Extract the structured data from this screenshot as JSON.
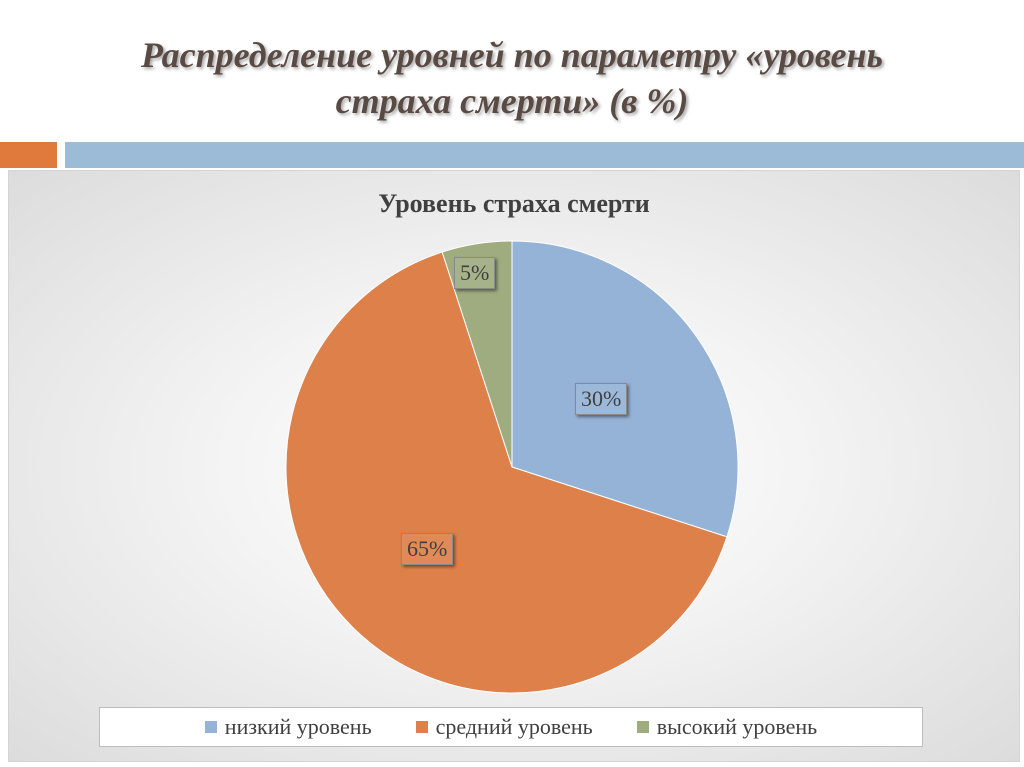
{
  "slide": {
    "title_line1": "Распределение уровней по параметру «уровень",
    "title_line2": "страха смерти» (в %)"
  },
  "colors": {
    "accent_orange": "#e07a3c",
    "accent_blue": "#9cbbd7"
  },
  "chart_data": {
    "type": "pie",
    "title": "Уровень страха смерти",
    "categories": [
      "низкий уровень",
      "средний уровень",
      "высокий уровень"
    ],
    "values": [
      30,
      65,
      5
    ],
    "labels": [
      "30%",
      "65%",
      "5%"
    ],
    "colors": [
      "#95b3d7",
      "#de804a",
      "#9fac7f"
    ],
    "legend_position": "bottom"
  }
}
